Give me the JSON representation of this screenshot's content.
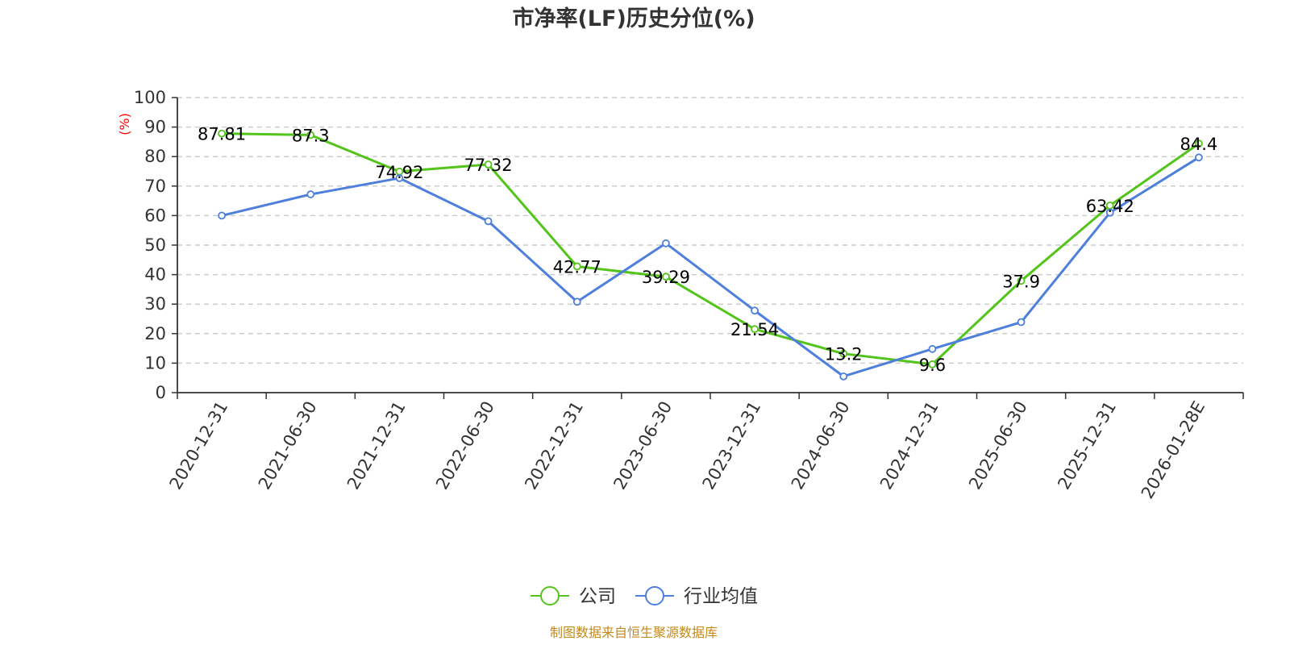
{
  "chart_data": {
    "type": "line",
    "title": "市净率(LF)历史分位(%)",
    "ylabel": "(%)",
    "xlabel": "",
    "ylim": [
      0,
      100
    ],
    "yticks": [
      0,
      10,
      20,
      30,
      40,
      50,
      60,
      70,
      80,
      90,
      100
    ],
    "categories": [
      "2020-12-31",
      "2021-06-30",
      "2021-12-31",
      "2022-06-30",
      "2022-12-31",
      "2023-06-30",
      "2023-12-31",
      "2024-06-30",
      "2024-12-31",
      "2025-06-30",
      "2025-12-31",
      "2026-01-28E"
    ],
    "grid": true,
    "legend_position": "bottom",
    "series": [
      {
        "name": "公司",
        "color": "#52c41a",
        "show_labels": true,
        "values": [
          87.81,
          87.3,
          74.92,
          77.32,
          42.77,
          39.29,
          21.54,
          13.2,
          9.6,
          37.9,
          63.42,
          84.4
        ],
        "labels": [
          "87.81",
          "87.3",
          "74.92",
          "77.32",
          "42.77",
          "39.29",
          "21.54",
          "13.2",
          "9.6",
          "37.9",
          "63.42",
          "84.4"
        ]
      },
      {
        "name": "行业均值",
        "color": "#4e7fdb",
        "show_labels": false,
        "values": [
          60,
          67.2,
          72.7,
          58.1,
          30.8,
          50.6,
          27.8,
          5.5,
          14.8,
          23.9,
          61,
          79.7
        ]
      }
    ]
  },
  "footer": {
    "source": "制图数据来自恒生聚源数据库"
  }
}
